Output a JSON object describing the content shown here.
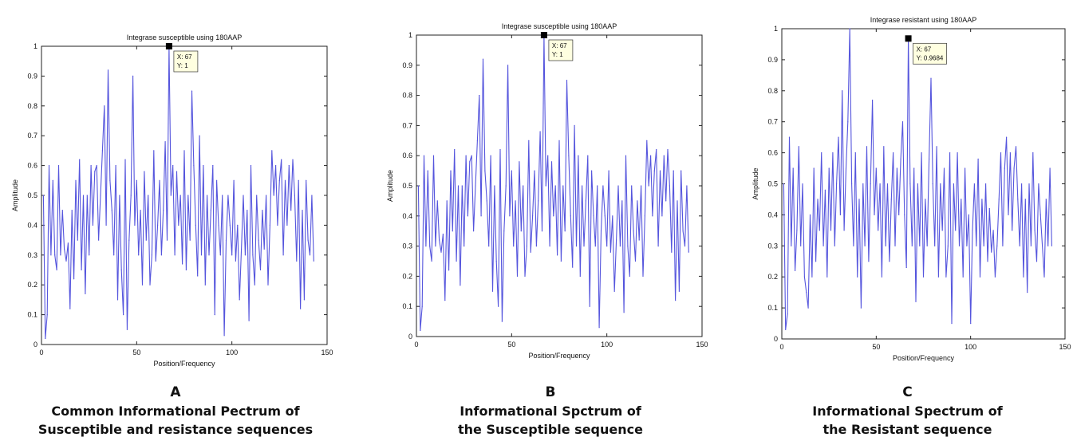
{
  "panels": [
    {
      "letter": "A",
      "caption_lines": [
        "Common Informational Pectrum of",
        "Susceptible and resistance sequences"
      ],
      "chart_data": {
        "type": "line",
        "title": "Integrase susceptible using 180AAP",
        "xlabel": "Position/Frequency",
        "ylabel": "Amplitude",
        "xlim": [
          0,
          150
        ],
        "ylim": [
          0,
          1
        ],
        "xticks": [
          "0",
          "50",
          "100",
          "150"
        ],
        "yticks": [
          "0",
          "0.1",
          "0.2",
          "0.3",
          "0.4",
          "0.5",
          "0.6",
          "0.7",
          "0.8",
          "0.9",
          "1"
        ],
        "grid": false,
        "line_color": "#5555dd",
        "datatip": {
          "x": 67,
          "y": 1,
          "lines": [
            "X: 67",
            "Y: 1"
          ]
        },
        "series": [
          {
            "x": [
              1,
              2,
              3,
              4,
              5,
              6,
              7,
              8,
              9,
              10,
              11,
              12,
              13,
              14,
              15,
              16,
              17,
              18,
              19,
              20,
              21,
              22,
              23,
              24,
              25,
              26,
              27,
              28,
              29,
              30,
              31,
              32,
              33,
              34,
              35,
              36,
              37,
              38,
              39,
              40,
              41,
              42,
              43,
              44,
              45,
              46,
              47,
              48,
              49,
              50,
              51,
              52,
              53,
              54,
              55,
              56,
              57,
              58,
              59,
              60,
              61,
              62,
              63,
              64,
              65,
              66,
              67,
              68,
              69,
              70,
              71,
              72,
              73,
              74,
              75,
              76,
              77,
              78,
              79,
              80,
              81,
              82,
              83,
              84,
              85,
              86,
              87,
              88,
              89,
              90,
              91,
              92,
              93,
              94,
              95,
              96,
              97,
              98,
              99,
              100,
              101,
              102,
              103,
              104,
              105,
              106,
              107,
              108,
              109,
              110,
              111,
              112,
              113,
              114,
              115,
              116,
              117,
              118,
              119,
              120,
              121,
              122,
              123,
              124,
              125,
              126,
              127,
              128,
              129,
              130,
              131,
              132,
              133,
              134,
              135,
              136,
              137,
              138,
              139,
              140,
              141,
              142,
              143
            ],
            "values": [
              0.5,
              0.02,
              0.1,
              0.6,
              0.3,
              0.55,
              0.3,
              0.25,
              0.6,
              0.3,
              0.45,
              0.32,
              0.28,
              0.34,
              0.12,
              0.45,
              0.22,
              0.55,
              0.35,
              0.62,
              0.25,
              0.5,
              0.17,
              0.5,
              0.3,
              0.6,
              0.4,
              0.58,
              0.6,
              0.35,
              0.5,
              0.65,
              0.8,
              0.4,
              0.92,
              0.55,
              0.45,
              0.3,
              0.6,
              0.15,
              0.5,
              0.25,
              0.1,
              0.62,
              0.05,
              0.35,
              0.5,
              0.9,
              0.4,
              0.55,
              0.3,
              0.45,
              0.2,
              0.58,
              0.35,
              0.5,
              0.2,
              0.3,
              0.65,
              0.28,
              0.4,
              0.55,
              0.3,
              0.45,
              0.68,
              0.35,
              1.0,
              0.5,
              0.6,
              0.3,
              0.58,
              0.4,
              0.5,
              0.27,
              0.65,
              0.25,
              0.5,
              0.35,
              0.85,
              0.6,
              0.4,
              0.23,
              0.7,
              0.3,
              0.6,
              0.2,
              0.5,
              0.3,
              0.45,
              0.6,
              0.1,
              0.55,
              0.4,
              0.3,
              0.5,
              0.03,
              0.35,
              0.5,
              0.4,
              0.3,
              0.55,
              0.28,
              0.4,
              0.15,
              0.32,
              0.5,
              0.3,
              0.45,
              0.08,
              0.6,
              0.3,
              0.2,
              0.5,
              0.35,
              0.25,
              0.45,
              0.32,
              0.5,
              0.2,
              0.4,
              0.65,
              0.5,
              0.6,
              0.4,
              0.55,
              0.62,
              0.3,
              0.55,
              0.4,
              0.6,
              0.45,
              0.62,
              0.5,
              0.28,
              0.55,
              0.12,
              0.45,
              0.15,
              0.55,
              0.35,
              0.3,
              0.5,
              0.28
            ]
          }
        ]
      }
    },
    {
      "letter": "B",
      "caption_lines": [
        "Informational Spctrum of",
        "the Susceptible sequence"
      ],
      "chart_data": {
        "type": "line",
        "title": "Integrase susceptible using 180AAP",
        "xlabel": "Position/Frequency",
        "ylabel": "Amplitude",
        "xlim": [
          0,
          150
        ],
        "ylim": [
          0,
          1
        ],
        "xticks": [
          "0",
          "50",
          "100",
          "150"
        ],
        "yticks": [
          "0",
          "0.1",
          "0.2",
          "0.3",
          "0.4",
          "0.5",
          "0.6",
          "0.7",
          "0.8",
          "0.9",
          "1"
        ],
        "grid": false,
        "line_color": "#5555dd",
        "datatip": {
          "x": 67,
          "y": 1,
          "lines": [
            "X: 67",
            "Y: 1"
          ]
        },
        "series": [
          {
            "x": [
              1,
              2,
              3,
              4,
              5,
              6,
              7,
              8,
              9,
              10,
              11,
              12,
              13,
              14,
              15,
              16,
              17,
              18,
              19,
              20,
              21,
              22,
              23,
              24,
              25,
              26,
              27,
              28,
              29,
              30,
              31,
              32,
              33,
              34,
              35,
              36,
              37,
              38,
              39,
              40,
              41,
              42,
              43,
              44,
              45,
              46,
              47,
              48,
              49,
              50,
              51,
              52,
              53,
              54,
              55,
              56,
              57,
              58,
              59,
              60,
              61,
              62,
              63,
              64,
              65,
              66,
              67,
              68,
              69,
              70,
              71,
              72,
              73,
              74,
              75,
              76,
              77,
              78,
              79,
              80,
              81,
              82,
              83,
              84,
              85,
              86,
              87,
              88,
              89,
              90,
              91,
              92,
              93,
              94,
              95,
              96,
              97,
              98,
              99,
              100,
              101,
              102,
              103,
              104,
              105,
              106,
              107,
              108,
              109,
              110,
              111,
              112,
              113,
              114,
              115,
              116,
              117,
              118,
              119,
              120,
              121,
              122,
              123,
              124,
              125,
              126,
              127,
              128,
              129,
              130,
              131,
              132,
              133,
              134,
              135,
              136,
              137,
              138,
              139,
              140,
              141,
              142,
              143
            ],
            "values": [
              0.5,
              0.02,
              0.1,
              0.6,
              0.3,
              0.55,
              0.3,
              0.25,
              0.6,
              0.3,
              0.45,
              0.32,
              0.28,
              0.34,
              0.12,
              0.45,
              0.22,
              0.55,
              0.35,
              0.62,
              0.25,
              0.5,
              0.17,
              0.5,
              0.3,
              0.6,
              0.4,
              0.58,
              0.6,
              0.35,
              0.5,
              0.65,
              0.8,
              0.4,
              0.92,
              0.55,
              0.45,
              0.3,
              0.6,
              0.15,
              0.5,
              0.25,
              0.1,
              0.62,
              0.05,
              0.35,
              0.5,
              0.9,
              0.4,
              0.55,
              0.3,
              0.45,
              0.2,
              0.58,
              0.35,
              0.5,
              0.2,
              0.3,
              0.65,
              0.28,
              0.4,
              0.55,
              0.3,
              0.45,
              0.68,
              0.35,
              1.0,
              0.5,
              0.6,
              0.3,
              0.58,
              0.4,
              0.5,
              0.27,
              0.65,
              0.25,
              0.5,
              0.35,
              0.85,
              0.6,
              0.4,
              0.23,
              0.7,
              0.3,
              0.6,
              0.2,
              0.5,
              0.3,
              0.45,
              0.6,
              0.1,
              0.55,
              0.4,
              0.3,
              0.5,
              0.03,
              0.35,
              0.5,
              0.4,
              0.3,
              0.55,
              0.28,
              0.4,
              0.15,
              0.32,
              0.5,
              0.3,
              0.45,
              0.08,
              0.6,
              0.3,
              0.2,
              0.5,
              0.35,
              0.25,
              0.45,
              0.32,
              0.5,
              0.2,
              0.4,
              0.65,
              0.5,
              0.6,
              0.4,
              0.55,
              0.62,
              0.3,
              0.55,
              0.4,
              0.6,
              0.45,
              0.62,
              0.5,
              0.28,
              0.55,
              0.12,
              0.45,
              0.15,
              0.55,
              0.35,
              0.3,
              0.5,
              0.28
            ]
          }
        ]
      }
    },
    {
      "letter": "C",
      "caption_lines": [
        "Informational Spectrum of",
        "the Resistant sequence"
      ],
      "chart_data": {
        "type": "line",
        "title": "Integrase resistant using 180AAP",
        "xlabel": "Position/Frequency",
        "ylabel": "Amplitude",
        "xlim": [
          0,
          150
        ],
        "ylim": [
          0,
          1
        ],
        "xticks": [
          "0",
          "50",
          "100",
          "150"
        ],
        "yticks": [
          "0",
          "0.1",
          "0.2",
          "0.3",
          "0.4",
          "0.5",
          "0.6",
          "0.7",
          "0.8",
          "0.9",
          "1"
        ],
        "grid": false,
        "line_color": "#5555dd",
        "datatip": {
          "x": 67,
          "y": 0.9684,
          "lines": [
            "X: 67",
            "Y: 0.9684"
          ]
        },
        "series": [
          {
            "x": [
              1,
              2,
              3,
              4,
              5,
              6,
              7,
              8,
              9,
              10,
              11,
              12,
              13,
              14,
              15,
              16,
              17,
              18,
              19,
              20,
              21,
              22,
              23,
              24,
              25,
              26,
              27,
              28,
              29,
              30,
              31,
              32,
              33,
              34,
              35,
              36,
              37,
              38,
              39,
              40,
              41,
              42,
              43,
              44,
              45,
              46,
              47,
              48,
              49,
              50,
              51,
              52,
              53,
              54,
              55,
              56,
              57,
              58,
              59,
              60,
              61,
              62,
              63,
              64,
              65,
              66,
              67,
              68,
              69,
              70,
              71,
              72,
              73,
              74,
              75,
              76,
              77,
              78,
              79,
              80,
              81,
              82,
              83,
              84,
              85,
              86,
              87,
              88,
              89,
              90,
              91,
              92,
              93,
              94,
              95,
              96,
              97,
              98,
              99,
              100,
              101,
              102,
              103,
              104,
              105,
              106,
              107,
              108,
              109,
              110,
              111,
              112,
              113,
              114,
              115,
              116,
              117,
              118,
              119,
              120,
              121,
              122,
              123,
              124,
              125,
              126,
              127,
              128,
              129,
              130,
              131,
              132,
              133,
              134,
              135,
              136,
              137,
              138,
              139,
              140,
              141,
              142,
              143
            ],
            "values": [
              0.5,
              0.03,
              0.08,
              0.65,
              0.3,
              0.55,
              0.22,
              0.35,
              0.62,
              0.3,
              0.5,
              0.2,
              0.15,
              0.1,
              0.4,
              0.2,
              0.55,
              0.25,
              0.45,
              0.35,
              0.6,
              0.3,
              0.48,
              0.2,
              0.55,
              0.35,
              0.6,
              0.3,
              0.5,
              0.65,
              0.4,
              0.8,
              0.35,
              0.55,
              0.7,
              1.0,
              0.5,
              0.3,
              0.6,
              0.2,
              0.45,
              0.1,
              0.5,
              0.3,
              0.62,
              0.25,
              0.5,
              0.77,
              0.4,
              0.55,
              0.35,
              0.5,
              0.2,
              0.62,
              0.3,
              0.5,
              0.25,
              0.45,
              0.6,
              0.3,
              0.55,
              0.4,
              0.58,
              0.7,
              0.4,
              0.23,
              0.97,
              0.5,
              0.3,
              0.55,
              0.12,
              0.5,
              0.3,
              0.6,
              0.2,
              0.45,
              0.3,
              0.58,
              0.84,
              0.5,
              0.3,
              0.62,
              0.2,
              0.5,
              0.35,
              0.55,
              0.2,
              0.3,
              0.6,
              0.05,
              0.5,
              0.35,
              0.6,
              0.3,
              0.45,
              0.2,
              0.55,
              0.3,
              0.4,
              0.05,
              0.35,
              0.5,
              0.3,
              0.58,
              0.2,
              0.45,
              0.3,
              0.5,
              0.25,
              0.42,
              0.28,
              0.35,
              0.2,
              0.3,
              0.45,
              0.6,
              0.3,
              0.55,
              0.65,
              0.4,
              0.6,
              0.35,
              0.55,
              0.62,
              0.45,
              0.3,
              0.5,
              0.2,
              0.45,
              0.15,
              0.5,
              0.3,
              0.6,
              0.35,
              0.25,
              0.5,
              0.4,
              0.3,
              0.2,
              0.45,
              0.3,
              0.55,
              0.3
            ]
          }
        ]
      }
    }
  ]
}
